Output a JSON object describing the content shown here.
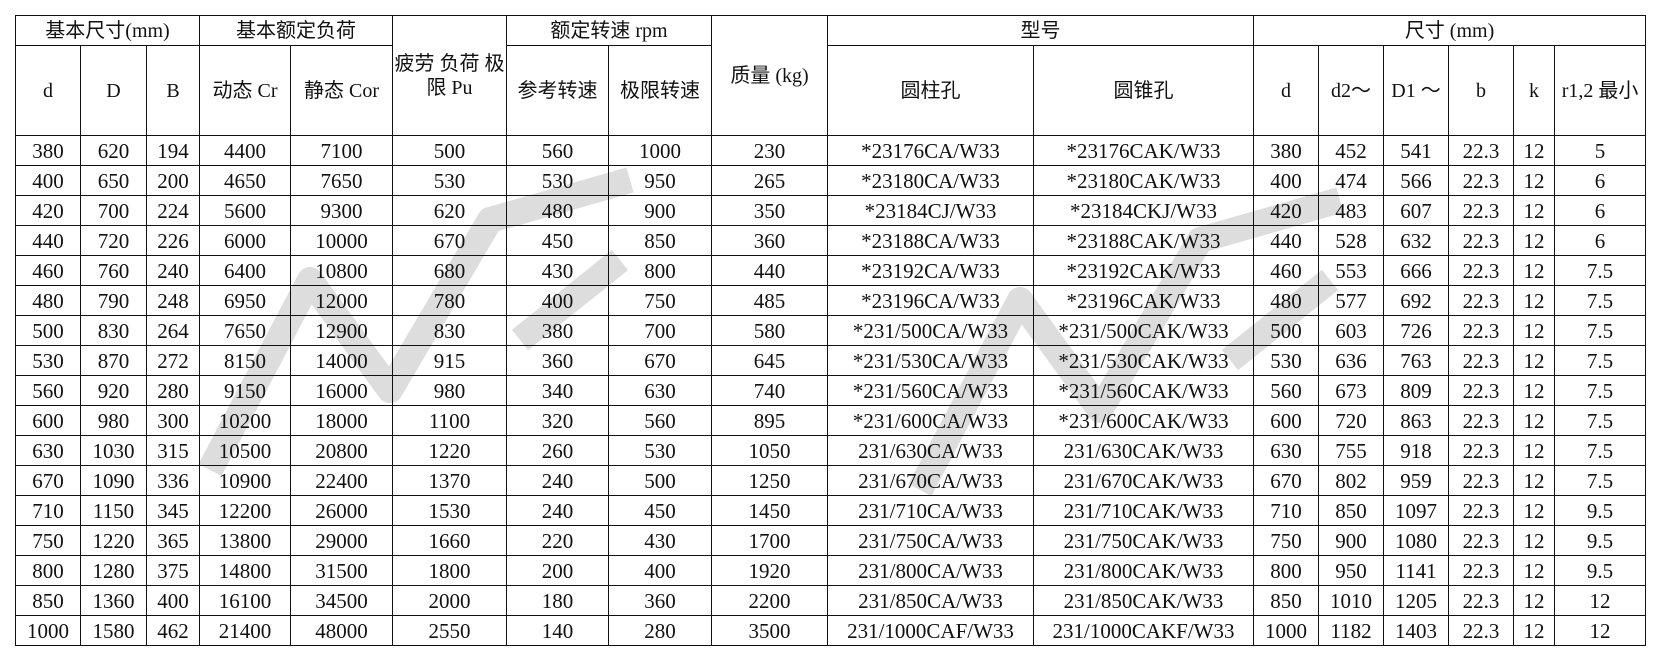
{
  "header": {
    "group_basic_dims": "基本尺寸(mm)",
    "group_rated_load": "基本额定负荷",
    "fatigue_limit": "疲劳 负荷 极限 Pu",
    "group_speed": "额定转速 rpm",
    "mass": "质量 (kg)",
    "group_model": "型号",
    "group_dims": "尺寸 (mm)",
    "col_d": "d",
    "col_D": "D",
    "col_B": "B",
    "col_cr": "动态 Cr",
    "col_cor": "静态 Cor",
    "col_ref_speed": "参考转速",
    "col_limit_speed": "极限转速",
    "col_cyl_bore": "圆柱孔",
    "col_taper_bore": "圆锥孔",
    "col_d2": "d",
    "col_d2a": "d2～",
    "col_D1": "D1 ～",
    "col_b": "b",
    "col_k": "k",
    "col_r": "r1,2 最小"
  },
  "rows": [
    [
      "380",
      "620",
      "194",
      "4400",
      "7100",
      "500",
      "560",
      "1000",
      "230",
      "*23176CA/W33",
      "*23176CAK/W33",
      "380",
      "452",
      "541",
      "22.3",
      "12",
      "5"
    ],
    [
      "400",
      "650",
      "200",
      "4650",
      "7650",
      "530",
      "530",
      "950",
      "265",
      "*23180CA/W33",
      "*23180CAK/W33",
      "400",
      "474",
      "566",
      "22.3",
      "12",
      "6"
    ],
    [
      "420",
      "700",
      "224",
      "5600",
      "9300",
      "620",
      "480",
      "900",
      "350",
      "*23184CJ/W33",
      "*23184CKJ/W33",
      "420",
      "483",
      "607",
      "22.3",
      "12",
      "6"
    ],
    [
      "440",
      "720",
      "226",
      "6000",
      "10000",
      "670",
      "450",
      "850",
      "360",
      "*23188CA/W33",
      "*23188CAK/W33",
      "440",
      "528",
      "632",
      "22.3",
      "12",
      "6"
    ],
    [
      "460",
      "760",
      "240",
      "6400",
      "10800",
      "680",
      "430",
      "800",
      "440",
      "*23192CA/W33",
      "*23192CAK/W33",
      "460",
      "553",
      "666",
      "22.3",
      "12",
      "7.5"
    ],
    [
      "480",
      "790",
      "248",
      "6950",
      "12000",
      "780",
      "400",
      "750",
      "485",
      "*23196CA/W33",
      "*23196CAK/W33",
      "480",
      "577",
      "692",
      "22.3",
      "12",
      "7.5"
    ],
    [
      "500",
      "830",
      "264",
      "7650",
      "12900",
      "830",
      "380",
      "700",
      "580",
      "*231/500CA/W33",
      "*231/500CAK/W33",
      "500",
      "603",
      "726",
      "22.3",
      "12",
      "7.5"
    ],
    [
      "530",
      "870",
      "272",
      "8150",
      "14000",
      "915",
      "360",
      "670",
      "645",
      "*231/530CA/W33",
      "*231/530CAK/W33",
      "530",
      "636",
      "763",
      "22.3",
      "12",
      "7.5"
    ],
    [
      "560",
      "920",
      "280",
      "9150",
      "16000",
      "980",
      "340",
      "630",
      "740",
      "*231/560CA/W33",
      "*231/560CAK/W33",
      "560",
      "673",
      "809",
      "22.3",
      "12",
      "7.5"
    ],
    [
      "600",
      "980",
      "300",
      "10200",
      "18000",
      "1100",
      "320",
      "560",
      "895",
      "*231/600CA/W33",
      "*231/600CAK/W33",
      "600",
      "720",
      "863",
      "22.3",
      "12",
      "7.5"
    ],
    [
      "630",
      "1030",
      "315",
      "10500",
      "20800",
      "1220",
      "260",
      "530",
      "1050",
      "231/630CA/W33",
      "231/630CAK/W33",
      "630",
      "755",
      "918",
      "22.3",
      "12",
      "7.5"
    ],
    [
      "670",
      "1090",
      "336",
      "10900",
      "22400",
      "1370",
      "240",
      "500",
      "1250",
      "231/670CA/W33",
      "231/670CAK/W33",
      "670",
      "802",
      "959",
      "22.3",
      "12",
      "7.5"
    ],
    [
      "710",
      "1150",
      "345",
      "12200",
      "26000",
      "1530",
      "240",
      "450",
      "1450",
      "231/710CA/W33",
      "231/710CAK/W33",
      "710",
      "850",
      "1097",
      "22.3",
      "12",
      "9.5"
    ],
    [
      "750",
      "1220",
      "365",
      "13800",
      "29000",
      "1660",
      "220",
      "430",
      "1700",
      "231/750CA/W33",
      "231/750CAK/W33",
      "750",
      "900",
      "1080",
      "22.3",
      "12",
      "9.5"
    ],
    [
      "800",
      "1280",
      "375",
      "14800",
      "31500",
      "1800",
      "200",
      "400",
      "1920",
      "231/800CA/W33",
      "231/800CAK/W33",
      "800",
      "950",
      "1141",
      "22.3",
      "12",
      "9.5"
    ],
    [
      "850",
      "1360",
      "400",
      "16100",
      "34500",
      "2000",
      "180",
      "360",
      "2200",
      "231/850CA/W33",
      "231/850CAK/W33",
      "850",
      "1010",
      "1205",
      "22.3",
      "12",
      "12"
    ],
    [
      "1000",
      "1580",
      "462",
      "21400",
      "48000",
      "2550",
      "140",
      "280",
      "3500",
      "231/1000CAF/W33",
      "231/1000CAKF/W33",
      "1000",
      "1182",
      "1403",
      "22.3",
      "12",
      "12"
    ]
  ],
  "watermark_color": "#9a9a9a"
}
